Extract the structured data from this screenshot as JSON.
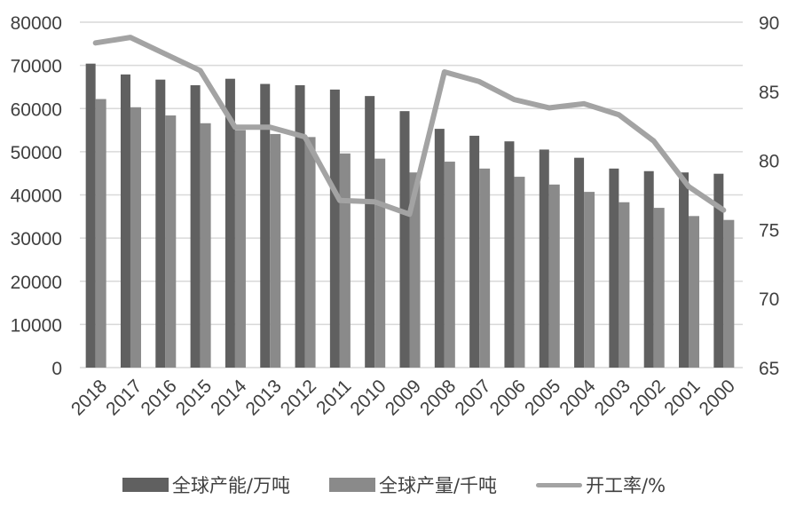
{
  "colors": {
    "capacity": "#606060",
    "production": "#8a8a8a",
    "utilization": "#a3a3a3",
    "grid": "#d9d9d9",
    "text": "#404040"
  },
  "legend": {
    "capacity_label": "全球产能/万吨",
    "production_label": "全球产量/千吨",
    "utilization_label": "开工率/%"
  },
  "chart_data": {
    "type": "bar+line",
    "title": "",
    "xlabel": "",
    "ylabel": "",
    "y2label": "",
    "categories": [
      "2018",
      "2017",
      "2016",
      "2015",
      "2014",
      "2013",
      "2012",
      "2011",
      "2010",
      "2009",
      "2008",
      "2007",
      "2006",
      "2005",
      "2004",
      "2003",
      "2002",
      "2001",
      "2000"
    ],
    "series": [
      {
        "name": "全球产能/万吨",
        "type": "bar",
        "axis": "left",
        "values": [
          70400,
          67900,
          66700,
          65400,
          66900,
          65700,
          65400,
          64400,
          62900,
          59400,
          55300,
          53700,
          52400,
          50500,
          48600,
          46100,
          45500,
          45200,
          44900
        ]
      },
      {
        "name": "全球产量/千吨",
        "type": "bar",
        "axis": "left",
        "values": [
          62200,
          60300,
          58400,
          56600,
          55000,
          54100,
          53400,
          49600,
          48400,
          45200,
          47700,
          46100,
          44200,
          42400,
          40700,
          38300,
          37000,
          35100,
          34200
        ]
      },
      {
        "name": "开工率/%",
        "type": "line",
        "axis": "right",
        "values": [
          88.5,
          88.9,
          87.7,
          86.5,
          82.4,
          82.4,
          81.7,
          77.1,
          77.0,
          76.1,
          86.4,
          85.7,
          84.4,
          83.8,
          84.1,
          83.3,
          81.4,
          78.1,
          76.4
        ]
      }
    ],
    "y_left": {
      "min": 0,
      "max": 80000,
      "step": 10000,
      "ticks": [
        "0",
        "10000",
        "20000",
        "30000",
        "40000",
        "50000",
        "60000",
        "70000",
        "80000"
      ]
    },
    "y_right": {
      "min": 65,
      "max": 90,
      "step": 5,
      "ticks": [
        "65",
        "70",
        "75",
        "80",
        "85",
        "90"
      ]
    },
    "grid": true,
    "legend_position": "bottom"
  }
}
